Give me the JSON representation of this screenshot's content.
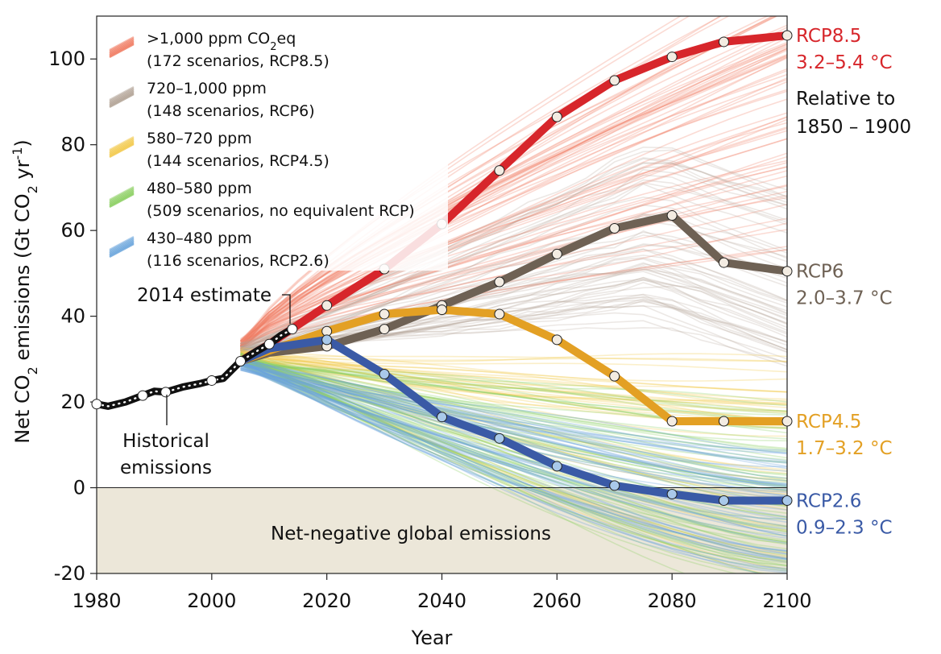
{
  "chart_data": {
    "type": "line",
    "xlabel": "Year",
    "ylabel_parts": [
      "Net CO",
      "2",
      " emissions (Gt CO",
      "2",
      " yr",
      "-1",
      ")"
    ],
    "xlim": [
      1980,
      2100
    ],
    "ylim": [
      -20,
      110
    ],
    "x_ticks": [
      1980,
      2000,
      2020,
      2040,
      2060,
      2080,
      2100
    ],
    "y_ticks": [
      -20,
      0,
      20,
      40,
      60,
      80,
      100
    ],
    "negative_region_label": "Net-negative global emissions",
    "legend_placement": "top-left",
    "legend": [
      {
        "line1": ">1,000 ppm CO",
        "line1_sub": "2",
        "line1_tail": "eq",
        "line2": "(172 scenarios, RCP8.5)",
        "color": "#f07c63"
      },
      {
        "line1": "720–1,000 ppm",
        "line2": "(148 scenarios, RCP6)",
        "color": "#b3a497"
      },
      {
        "line1": "580–720 ppm",
        "line2": "(144 scenarios, RCP4.5)",
        "color": "#f2c94c"
      },
      {
        "line1": "480–580 ppm",
        "line2": "(509 scenarios, no equivalent RCP)",
        "color": "#8ccf63"
      },
      {
        "line1": "430–480 ppm",
        "line2": "(116 scenarios, RCP2.6)",
        "color": "#6ca6dc"
      }
    ],
    "annotations": {
      "estimate": "2014 estimate",
      "historical_line1": "Historical",
      "historical_line2": "emissions"
    },
    "historical": {
      "name": "Historical emissions",
      "color": "#111111",
      "x": [
        1980,
        1982,
        1985,
        1988,
        1990,
        1992,
        1995,
        1998,
        2000,
        2002,
        2005,
        2008,
        2010,
        2012,
        2014
      ],
      "y": [
        19.5,
        19,
        20,
        21.5,
        22.5,
        22.3,
        23.5,
        24.3,
        25,
        25.5,
        29.5,
        32,
        33.5,
        35.5,
        37
      ]
    },
    "series": [
      {
        "id": "rcp85",
        "name": "RCP8.5",
        "range": "3.2–5.4 °C",
        "extra": [
          "Relative to",
          "1850 – 1900"
        ],
        "color": "#d7262b",
        "x": [
          2005,
          2010,
          2020,
          2030,
          2040,
          2050,
          2060,
          2070,
          2080,
          2089,
          2100
        ],
        "y": [
          29.5,
          33.5,
          42.5,
          51,
          61.5,
          74,
          86.5,
          95,
          100.5,
          104,
          105.5
        ]
      },
      {
        "id": "rcp6",
        "name": "RCP6",
        "range": "2.0–3.7 °C",
        "color": "#6e6154",
        "x": [
          2005,
          2010,
          2020,
          2030,
          2040,
          2050,
          2060,
          2070,
          2080,
          2089,
          2100
        ],
        "y": [
          29.5,
          31.5,
          33,
          37,
          42.5,
          48,
          54.5,
          60.5,
          63.5,
          52.5,
          50.5
        ]
      },
      {
        "id": "rcp45",
        "name": "RCP4.5",
        "range": "1.7–3.2 °C",
        "color": "#e3a024",
        "x": [
          2005,
          2010,
          2020,
          2030,
          2040,
          2050,
          2060,
          2070,
          2080,
          2089,
          2100
        ],
        "y": [
          29.5,
          32,
          36.5,
          40.5,
          41.5,
          40.5,
          34.5,
          26,
          15.5,
          15.5,
          15.5
        ]
      },
      {
        "id": "rcp26",
        "name": "RCP2.6",
        "range": "0.9–2.3 °C",
        "color": "#3a5aa6",
        "x": [
          2005,
          2010,
          2020,
          2030,
          2040,
          2050,
          2060,
          2070,
          2080,
          2089,
          2100
        ],
        "y": [
          29.5,
          32.5,
          34.5,
          26.5,
          16.5,
          11.5,
          5,
          0.5,
          -1.5,
          -3,
          -3
        ]
      }
    ],
    "scenario_bands": [
      {
        "name": ">1,000 ppm CO2eq",
        "color": "#f07c63",
        "count": 70,
        "start": [
          2010,
          33
        ],
        "end_min": 55,
        "end_max": 125,
        "shape": "rise",
        "opacity": 0.28
      },
      {
        "name": "720–1,000 ppm",
        "color": "#b3a497",
        "count": 55,
        "start": [
          2010,
          32
        ],
        "end_min": 28,
        "end_max": 70,
        "shape": "hump",
        "opacity": 0.25
      },
      {
        "name": "580–720 ppm",
        "color": "#f2c94c",
        "count": 45,
        "start": [
          2010,
          31
        ],
        "end_min": -22,
        "end_max": 30,
        "shape": "fall",
        "opacity": 0.3
      },
      {
        "name": "480–580 ppm",
        "color": "#8ccf63",
        "count": 70,
        "start": [
          2010,
          30
        ],
        "end_min": -25,
        "end_max": 20,
        "shape": "fall",
        "opacity": 0.3
      },
      {
        "name": "430–480 ppm",
        "color": "#6ca6dc",
        "count": 55,
        "start": [
          2010,
          29
        ],
        "end_min": -22,
        "end_max": 10,
        "shape": "fall",
        "opacity": 0.32
      }
    ]
  }
}
